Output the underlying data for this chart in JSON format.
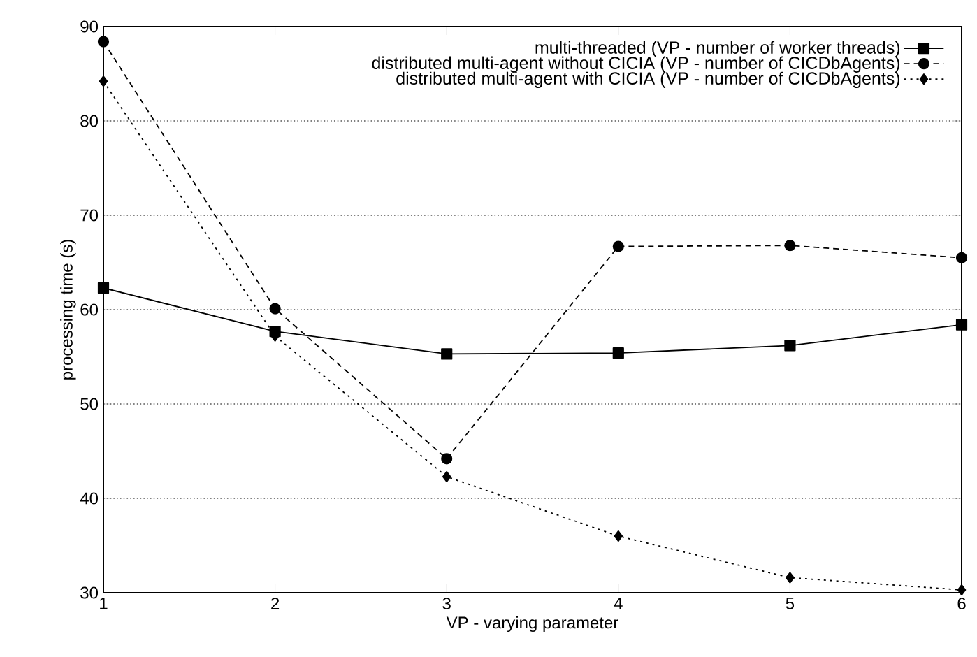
{
  "chart_data": {
    "type": "line",
    "xlabel": "VP - varying parameter",
    "ylabel": "processing time (s)",
    "x": [
      1,
      2,
      3,
      4,
      5,
      6
    ],
    "xlim": [
      1,
      6
    ],
    "xticks": [
      1,
      2,
      3,
      4,
      5,
      6
    ],
    "ylim": [
      30,
      90
    ],
    "yticks": [
      30,
      40,
      50,
      60,
      70,
      80,
      90
    ],
    "grid": "y",
    "legend": "top right",
    "series": [
      {
        "name": "multi-threaded (VP - number of worker threads)",
        "color": "#000000",
        "marker": "square",
        "line_style": "solid",
        "values": [
          62.3,
          57.7,
          55.3,
          55.4,
          56.2,
          58.4
        ]
      },
      {
        "name": "distributed multi-agent without CICIA (VP - number of CICDbAgents)",
        "color": "#000000",
        "marker": "circle",
        "line_style": "dashed",
        "values": [
          88.4,
          60.1,
          44.2,
          66.7,
          66.8,
          65.5
        ]
      },
      {
        "name": "distributed multi-agent with CICIA (VP - number of CICDbAgents)",
        "color": "#000000",
        "marker": "diamond",
        "line_style": "dotted",
        "values": [
          84.2,
          57.2,
          42.3,
          36.0,
          31.6,
          30.3
        ]
      }
    ]
  }
}
